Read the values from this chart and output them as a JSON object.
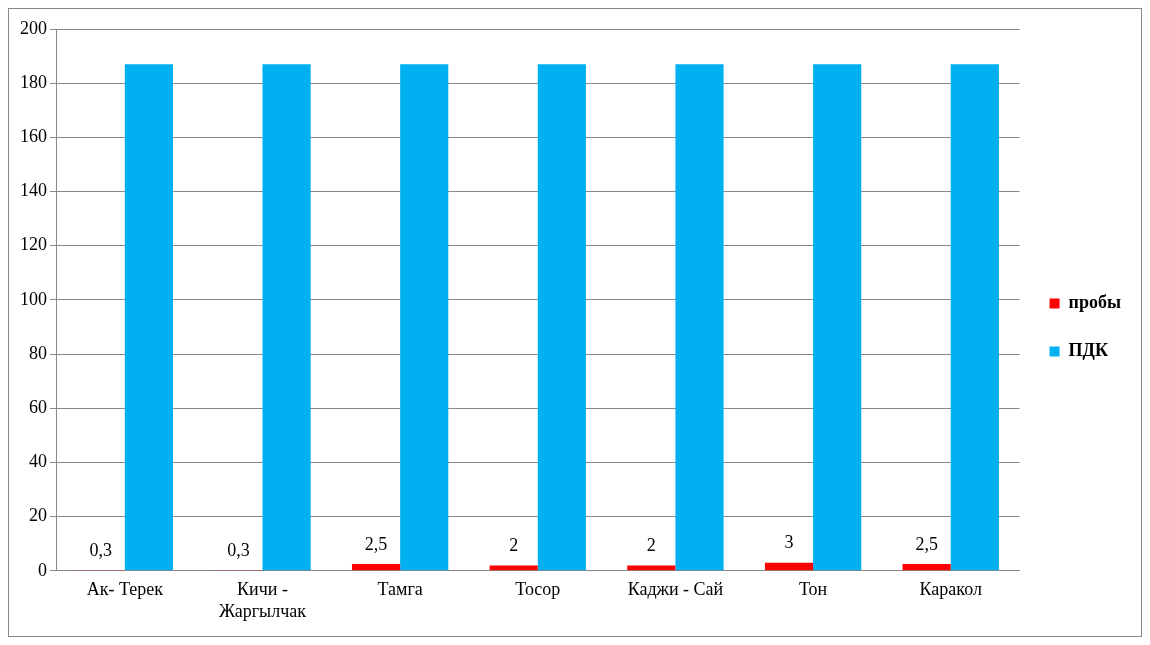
{
  "chart_data": {
    "type": "bar",
    "categories": [
      "Ак- Терек",
      "Кичи - Жаргылчак",
      "Тамга",
      "Тосор",
      "Каджи - Сай",
      "Тон",
      "Каракол"
    ],
    "series": [
      {
        "name": "пробы",
        "color": "#ff0000",
        "values": [
          0.3,
          0.3,
          2.5,
          2,
          2,
          3,
          2.5
        ],
        "value_labels": [
          "0,3",
          "0,3",
          "2,5",
          "2",
          "2",
          "3",
          "2,5"
        ]
      },
      {
        "name": "ПДК",
        "color": "#00b0f0",
        "values": [
          187,
          187,
          187,
          187,
          187,
          187,
          187
        ]
      }
    ],
    "ylim": [
      0,
      200
    ],
    "yticks": [
      0,
      20,
      40,
      60,
      80,
      100,
      120,
      140,
      160,
      180,
      200
    ],
    "grid": "y",
    "legend": "right"
  }
}
